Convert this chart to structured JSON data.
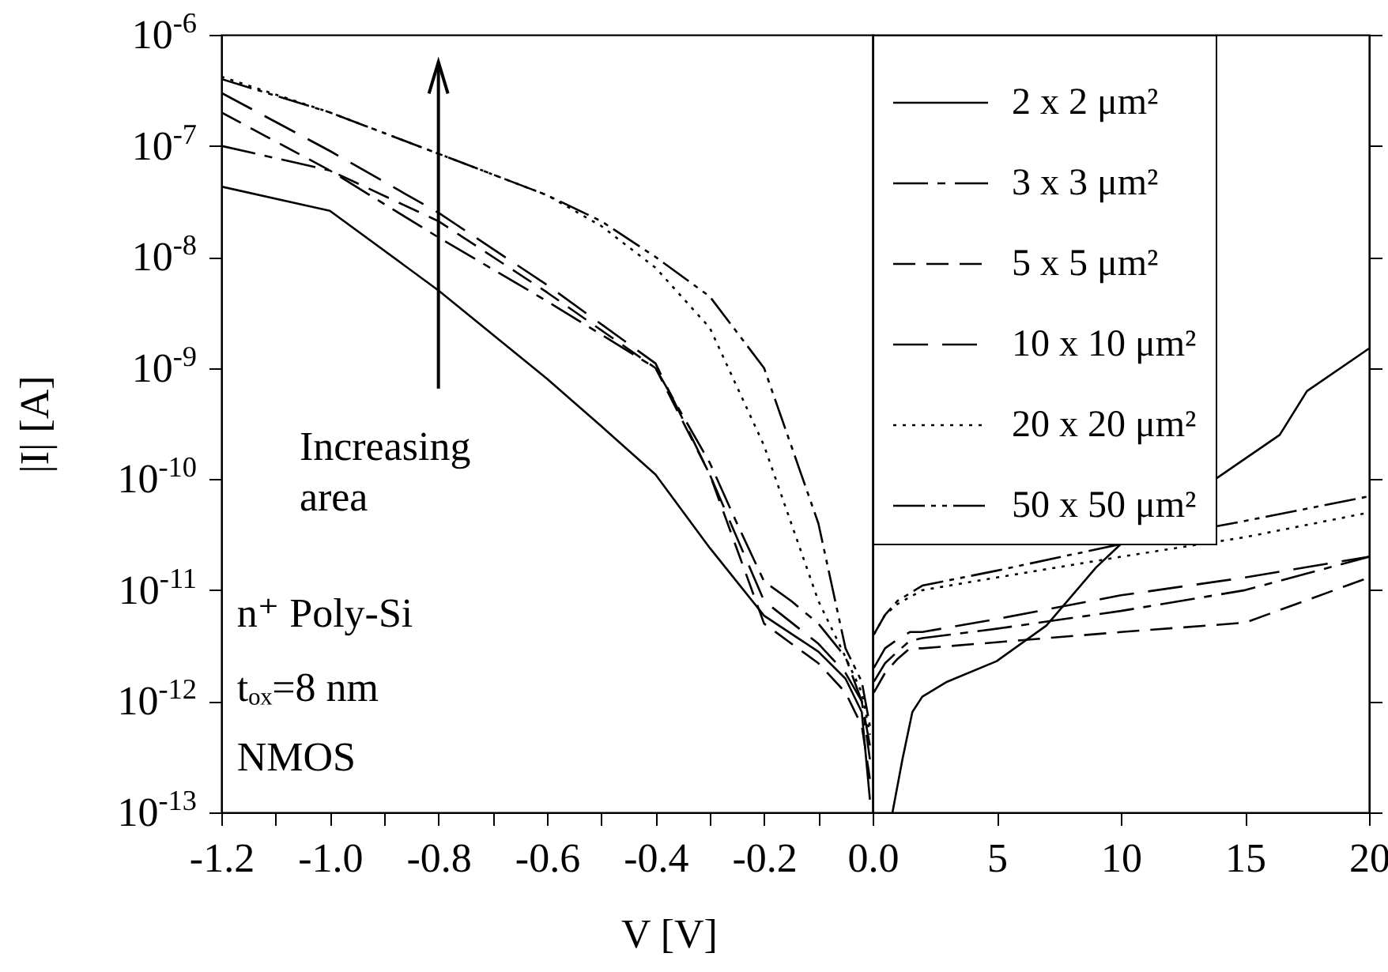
{
  "chart_data": [
    {
      "type": "line",
      "xlabel": "V [V]",
      "ylabel": "|I| [A]",
      "log": true,
      "legend": false,
      "tick_labels": "xy",
      "xlim": [
        -1.2,
        0
      ],
      "xticks": [
        {
          "value": -1.2,
          "label": "-1.2"
        },
        {
          "value": -1.1,
          "label": null
        },
        {
          "value": -1,
          "label": "-1.0"
        },
        {
          "value": -0.9,
          "label": null
        },
        {
          "value": -0.8,
          "label": "-0.8"
        },
        {
          "value": -0.7,
          "label": null
        },
        {
          "value": -0.6,
          "label": "-0.6"
        },
        {
          "value": -0.5,
          "label": null
        },
        {
          "value": -0.4,
          "label": "-0.4"
        },
        {
          "value": -0.3,
          "label": null
        },
        {
          "value": -0.2,
          "label": "-0.2"
        },
        {
          "value": -0.1,
          "label": null
        },
        {
          "value": 0,
          "label": "0.0"
        }
      ],
      "ylim": [
        1e-13,
        1e-06
      ],
      "yticks": [
        {
          "value": 1e-13,
          "label": "10$^{-13}$"
        },
        {
          "value": 1e-12,
          "label": "10$^{-12}$"
        },
        {
          "value": 1e-11,
          "label": "10$^{-11}$"
        },
        {
          "value": 1e-10,
          "label": "10$^{-10}$"
        },
        {
          "value": 1e-09,
          "label": "10$^{-9}$"
        },
        {
          "value": 1e-08,
          "label": "10$^{-8}$"
        },
        {
          "value": 1e-07,
          "label": "10$^{-7}$"
        },
        {
          "value": 1e-06,
          "label": "10$^{-6}$"
        }
      ],
      "annotations": [
        "Increasing area",
        "n⁺ Poly-Si",
        "tₒₓ=8 nm",
        "NMOS"
      ],
      "series": [
        {
          "color": "#000000",
          "line_style": "solid",
          "x": [
            -1.2,
            -1.0,
            -0.8,
            -0.6,
            -0.5,
            -0.4,
            -0.3,
            -0.2,
            -0.1,
            -0.05,
            -0.02,
            -0.005
          ],
          "values": [
            4.3e-08,
            2.6e-08,
            5e-09,
            8e-10,
            3e-10,
            1.1e-10,
            2.4e-11,
            5.9e-12,
            2.8e-12,
            1.6e-12,
            8e-13,
            1.3e-13
          ]
        },
        {
          "color": "#000000",
          "line_style": "dashdot",
          "x": [
            -1.2,
            -1.0,
            -0.8,
            -0.6,
            -0.4,
            -0.3,
            -0.25,
            -0.2,
            -0.15,
            -0.1,
            -0.05,
            -0.02,
            -0.005
          ],
          "values": [
            1e-07,
            6e-08,
            1.5e-08,
            4e-09,
            1e-09,
            1.4e-10,
            4e-11,
            1.2e-11,
            8e-12,
            5e-12,
            2.5e-12,
            1e-12,
            3e-13
          ]
        },
        {
          "color": "#000000",
          "line_style": "dashed",
          "x": [
            -1.2,
            -1.0,
            -0.8,
            -0.6,
            -0.4,
            -0.3,
            -0.2,
            -0.1,
            -0.05,
            -0.02,
            -0.005
          ],
          "values": [
            2e-07,
            6e-08,
            2.1e-08,
            4.8e-09,
            1e-09,
            1.1e-10,
            5e-12,
            2.2e-12,
            1.2e-12,
            6e-13,
            2e-13
          ]
        },
        {
          "color": "#000000",
          "line_style": "longdash",
          "x": [
            -1.2,
            -1.0,
            -0.8,
            -0.6,
            -0.4,
            -0.3,
            -0.2,
            -0.1,
            -0.05,
            -0.02,
            -0.005
          ],
          "values": [
            3e-07,
            9e-08,
            2.5e-08,
            5.6e-09,
            1.1e-09,
            1.1e-10,
            8e-12,
            3.3e-12,
            1.8e-12,
            1e-12,
            4e-13
          ]
        },
        {
          "color": "#000000",
          "line_style": "dotted",
          "x": [
            -1.2,
            -1.0,
            -0.8,
            -0.6,
            -0.5,
            -0.4,
            -0.3,
            -0.2,
            -0.1,
            -0.05,
            -0.02,
            -0.005
          ],
          "values": [
            4.2e-07,
            2e-07,
            8.5e-08,
            3.6e-08,
            1.9e-08,
            8e-09,
            2.3e-09,
            2e-10,
            8e-12,
            2.5e-12,
            1.2e-12,
            5e-13
          ]
        },
        {
          "color": "#000000",
          "line_style": "dashdotdot",
          "x": [
            -1.2,
            -1.0,
            -0.8,
            -0.6,
            -0.5,
            -0.4,
            -0.3,
            -0.2,
            -0.1,
            -0.05,
            -0.02,
            -0.005
          ],
          "values": [
            4e-07,
            2e-07,
            8.5e-08,
            3.6e-08,
            2.1e-08,
            1e-08,
            4.4e-09,
            1e-09,
            4e-11,
            3e-12,
            1.5e-12,
            6e-13
          ]
        }
      ]
    },
    {
      "type": "line",
      "log": true,
      "legend": "top left",
      "tick_labels": "x",
      "xlim": [
        0,
        20
      ],
      "xticks": [
        {
          "value": 0,
          "label": null
        },
        5,
        10,
        15,
        20
      ],
      "ylim": [
        1e-13,
        1e-06
      ],
      "yticks": [
        1e-13,
        1e-12,
        1e-11,
        1e-10,
        1e-09,
        1e-08,
        1e-07,
        1e-06
      ],
      "series": [
        {
          "name": "2 x 2 μm²",
          "color": "#000000",
          "line_style": "solid",
          "x": [
            0.8,
            1.2,
            1.6,
            2,
            3,
            5,
            7,
            9,
            10,
            16.4,
            17.5,
            20
          ],
          "values": [
            1e-13,
            3e-13,
            8e-13,
            1.1e-12,
            1.5e-12,
            2.3e-12,
            4.8e-12,
            1.6e-11,
            2.6e-11,
            2.5e-10,
            6.2e-10,
            1.5e-09
          ]
        },
        {
          "name": "3 x 3 μm²",
          "color": "#000000",
          "line_style": "dashdot",
          "x": [
            0.05,
            0.5,
            1,
            1.5,
            2,
            5,
            10,
            15,
            20
          ],
          "values": [
            1.5e-12,
            2.2e-12,
            2.8e-12,
            3.5e-12,
            3.7e-12,
            4.5e-12,
            6.5e-12,
            1e-11,
            2e-11
          ]
        },
        {
          "name": "5 x 5 μm²",
          "color": "#000000",
          "line_style": "dashed",
          "x": [
            0.05,
            0.5,
            1,
            1.5,
            2,
            5,
            10,
            15,
            20
          ],
          "values": [
            1.2e-12,
            1.8e-12,
            2.4e-12,
            3e-12,
            3e-12,
            3.4e-12,
            4.2e-12,
            5.1e-12,
            1.3e-11
          ]
        },
        {
          "name": "10 x 10 μm²",
          "color": "#000000",
          "line_style": "longdash",
          "x": [
            0.05,
            0.5,
            1,
            1.5,
            2,
            5,
            10,
            15,
            20
          ],
          "values": [
            2e-12,
            3e-12,
            3.6e-12,
            4.2e-12,
            4.2e-12,
            5.5e-12,
            9e-12,
            1.3e-11,
            2e-11
          ]
        },
        {
          "name": "20 x 20 μm²",
          "color": "#000000",
          "line_style": "dotted",
          "x": [
            0.05,
            0.5,
            1,
            2,
            5,
            10,
            15,
            20
          ],
          "values": [
            4e-12,
            6e-12,
            7.5e-12,
            1e-11,
            1.3e-11,
            2e-11,
            3e-11,
            5e-11
          ]
        },
        {
          "name": "50 x 50 μm²",
          "color": "#000000",
          "line_style": "dashdotdot",
          "x": [
            0.05,
            0.5,
            1,
            2,
            5,
            10,
            15,
            20
          ],
          "values": [
            4e-12,
            6e-12,
            8e-12,
            1.1e-11,
            1.5e-11,
            2.6e-11,
            4.2e-11,
            7e-11
          ]
        }
      ]
    }
  ]
}
